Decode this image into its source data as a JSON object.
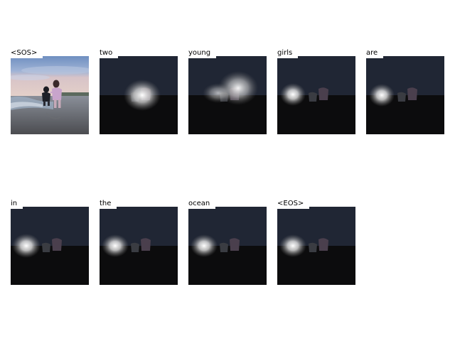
{
  "panels": [
    {
      "label": "<SOS>",
      "attention": null
    },
    {
      "label": "two",
      "attention": "girls"
    },
    {
      "label": "young",
      "attention": "girls-wide"
    },
    {
      "label": "girls",
      "attention": "left"
    },
    {
      "label": "are",
      "attention": "left-edge"
    },
    {
      "label": "in",
      "attention": "left-edge"
    },
    {
      "label": "the",
      "attention": "left"
    },
    {
      "label": "ocean",
      "attention": "left"
    },
    {
      "label": "<EOS>",
      "attention": "left"
    }
  ]
}
